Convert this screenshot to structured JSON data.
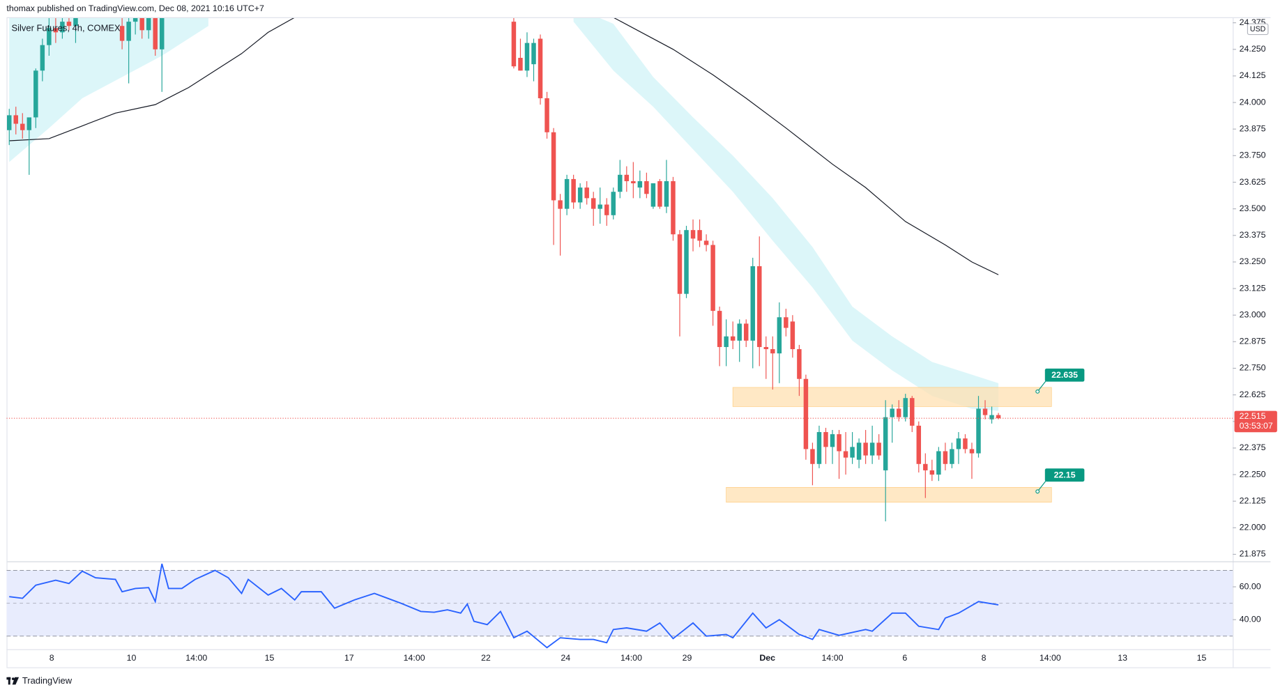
{
  "header": "thomax published on TradingView.com, Dec 08, 2021 10:16 UTC+7",
  "brand": "TradingView",
  "chart_data": [
    {
      "type": "candlestick",
      "title": "Silver Futures, 4h, COMEX",
      "y_unit": "USD",
      "up_color": "#26a69a",
      "down_color": "#ef5350",
      "grid": false,
      "xlim": [
        -0.4,
        184.3
      ],
      "xticks": [
        {
          "value": 6.4,
          "label": "8"
        },
        {
          "value": 18.4,
          "label": "10"
        },
        {
          "value": 28.2,
          "label": "14:00"
        },
        {
          "value": 39.2,
          "label": "15"
        },
        {
          "value": 51.2,
          "label": "17"
        },
        {
          "value": 61,
          "label": "14:00"
        },
        {
          "value": 71.8,
          "label": "22"
        },
        {
          "value": 83.8,
          "label": "24"
        },
        {
          "value": 93.7,
          "label": "14:00"
        },
        {
          "value": 102.1,
          "label": "29"
        },
        {
          "value": 114.2,
          "label": "Dec"
        },
        {
          "value": 124,
          "label": "14:00"
        },
        {
          "value": 134.9,
          "label": "6"
        },
        {
          "value": 146.8,
          "label": "8"
        },
        {
          "value": 156.8,
          "label": "14:00"
        },
        {
          "value": 167.7,
          "label": "13"
        },
        {
          "value": 179.6,
          "label": "15"
        }
      ],
      "ylim": [
        21.846,
        24.397
      ],
      "yticks": [
        {
          "value": 21.875,
          "label": "21.875"
        },
        {
          "value": 22,
          "label": "22.000"
        },
        {
          "value": 22.125,
          "label": "22.125"
        },
        {
          "value": 22.25,
          "label": "22.250"
        },
        {
          "value": 22.375,
          "label": "22.375"
        },
        {
          "value": 22.5,
          "label": "22.500"
        },
        {
          "value": 22.625,
          "label": "22.625"
        },
        {
          "value": 22.75,
          "label": "22.750"
        },
        {
          "value": 22.875,
          "label": "22.875"
        },
        {
          "value": 23,
          "label": "23.000"
        },
        {
          "value": 23.125,
          "label": "23.125"
        },
        {
          "value": 23.25,
          "label": "23.250"
        },
        {
          "value": 23.375,
          "label": "23.375"
        },
        {
          "value": 23.5,
          "label": "23.500"
        },
        {
          "value": 23.625,
          "label": "23.625"
        },
        {
          "value": 23.75,
          "label": "23.750"
        },
        {
          "value": 23.875,
          "label": "23.875"
        },
        {
          "value": 24,
          "label": "24.000"
        },
        {
          "value": 24.125,
          "label": "24.125"
        },
        {
          "value": 24.25,
          "label": "24.250"
        },
        {
          "value": 24.375,
          "label": "24.375"
        }
      ],
      "x": [
        0,
        1,
        2,
        3,
        4,
        5,
        6,
        7,
        8,
        9,
        10,
        17,
        18,
        19,
        20,
        21,
        22,
        23,
        76,
        77,
        78,
        79,
        80,
        81,
        82,
        83,
        84,
        85,
        86,
        87,
        88,
        89,
        90,
        91,
        92,
        93,
        94,
        95,
        96,
        97,
        98,
        99,
        100,
        101,
        102,
        103,
        104,
        105,
        106,
        107,
        108,
        109,
        110,
        111,
        112,
        113,
        114,
        115,
        116,
        117,
        118,
        119,
        120,
        121,
        122,
        123,
        124,
        125,
        126,
        127,
        128,
        129,
        130,
        131,
        132,
        133,
        134,
        135,
        136,
        137,
        138,
        139,
        140,
        141,
        142,
        143,
        144,
        145,
        146,
        147,
        148,
        149
      ],
      "candles": [
        [
          23.87,
          23.97,
          23.8,
          23.94
        ],
        [
          23.94,
          23.98,
          23.85,
          23.9
        ],
        [
          23.9,
          23.95,
          23.83,
          23.87
        ],
        [
          23.87,
          23.92,
          23.66,
          23.93
        ],
        [
          23.93,
          24.16,
          23.88,
          24.15
        ],
        [
          24.15,
          24.3,
          24.1,
          24.27
        ],
        [
          24.27,
          24.4,
          24.22,
          24.35
        ],
        [
          24.35,
          24.4,
          24.28,
          24.33
        ],
        [
          24.33,
          24.4,
          24.3,
          24.38
        ],
        [
          24.38,
          24.4,
          24.34,
          24.36
        ],
        [
          24.36,
          24.4,
          24.28,
          24.4
        ],
        [
          24.36,
          24.4,
          24.25,
          24.29
        ],
        [
          24.29,
          24.4,
          24.09,
          24.38
        ],
        [
          24.38,
          24.42,
          24.32,
          24.41
        ],
        [
          24.41,
          24.42,
          24.3,
          24.34
        ],
        [
          24.34,
          24.42,
          24.3,
          24.4
        ],
        [
          24.4,
          24.42,
          24.22,
          24.25
        ],
        [
          24.25,
          24.42,
          24.05,
          24.4
        ],
        [
          24.38,
          24.4,
          24.16,
          24.17
        ],
        [
          24.21,
          24.3,
          24.15,
          24.15
        ],
        [
          24.15,
          24.33,
          24.12,
          24.28
        ],
        [
          24.18,
          24.3,
          24.1,
          24.28
        ],
        [
          24.3,
          24.32,
          23.99,
          24.02
        ],
        [
          24.02,
          24.05,
          23.83,
          23.86
        ],
        [
          23.86,
          23.88,
          23.33,
          23.54
        ],
        [
          23.54,
          23.57,
          23.28,
          23.5
        ],
        [
          23.5,
          23.66,
          23.47,
          23.64
        ],
        [
          23.64,
          23.66,
          23.5,
          23.53
        ],
        [
          23.53,
          23.62,
          23.5,
          23.6
        ],
        [
          23.6,
          23.63,
          23.52,
          23.55
        ],
        [
          23.55,
          23.58,
          23.42,
          23.5
        ],
        [
          23.5,
          23.6,
          23.43,
          23.52
        ],
        [
          23.52,
          23.55,
          23.42,
          23.47
        ],
        [
          23.47,
          23.6,
          23.45,
          23.58
        ],
        [
          23.58,
          23.73,
          23.55,
          23.66
        ],
        [
          23.66,
          23.7,
          23.58,
          23.63
        ],
        [
          23.63,
          23.72,
          23.55,
          23.62
        ],
        [
          23.6,
          23.68,
          23.55,
          23.63
        ],
        [
          23.63,
          23.67,
          23.55,
          23.57
        ],
        [
          23.51,
          23.62,
          23.5,
          23.62
        ],
        [
          23.63,
          23.64,
          23.5,
          23.51
        ],
        [
          23.51,
          23.73,
          23.48,
          23.63
        ],
        [
          23.63,
          23.65,
          23.35,
          23.38
        ],
        [
          23.38,
          23.4,
          22.9,
          23.1
        ],
        [
          23.1,
          23.42,
          23.08,
          23.4
        ],
        [
          23.4,
          23.45,
          23.3,
          23.36
        ],
        [
          23.4,
          23.45,
          23.32,
          23.35
        ],
        [
          23.35,
          23.38,
          23.3,
          23.33
        ],
        [
          23.33,
          23.35,
          22.95,
          23.02
        ],
        [
          23.02,
          23.04,
          22.76,
          22.85
        ],
        [
          22.85,
          22.98,
          22.76,
          22.9
        ],
        [
          22.9,
          22.97,
          22.84,
          22.88
        ],
        [
          22.88,
          22.98,
          22.78,
          22.96
        ],
        [
          22.96,
          22.98,
          22.85,
          22.88
        ],
        [
          22.88,
          23.27,
          22.75,
          23.23
        ],
        [
          23.23,
          23.37,
          22.76,
          22.85
        ],
        [
          22.85,
          22.9,
          22.7,
          22.84
        ],
        [
          22.84,
          22.9,
          22.65,
          22.82
        ],
        [
          22.82,
          23.06,
          22.68,
          22.99
        ],
        [
          22.99,
          23.03,
          22.9,
          22.94
        ],
        [
          22.97,
          23,
          22.8,
          22.84
        ],
        [
          22.84,
          22.86,
          22.62,
          22.7
        ],
        [
          22.7,
          22.72,
          22.32,
          22.37
        ],
        [
          22.37,
          22.4,
          22.2,
          22.3
        ],
        [
          22.3,
          22.48,
          22.28,
          22.45
        ],
        [
          22.45,
          22.47,
          22.3,
          22.38
        ],
        [
          22.38,
          22.46,
          22.3,
          22.44
        ],
        [
          22.44,
          22.46,
          22.23,
          22.36
        ],
        [
          22.36,
          22.45,
          22.25,
          22.33
        ],
        [
          22.33,
          22.45,
          22.3,
          22.38
        ],
        [
          22.32,
          22.42,
          22.28,
          22.4
        ],
        [
          22.4,
          22.46,
          22.3,
          22.34
        ],
        [
          22.34,
          22.48,
          22.3,
          22.4
        ],
        [
          22.4,
          22.44,
          22.32,
          22.34
        ],
        [
          22.27,
          22.6,
          22.03,
          22.52
        ],
        [
          22.52,
          22.58,
          22.4,
          22.56
        ],
        [
          22.56,
          22.6,
          22.5,
          22.52
        ],
        [
          22.52,
          22.63,
          22.5,
          22.61
        ],
        [
          22.61,
          22.62,
          22.45,
          22.48
        ],
        [
          22.48,
          22.5,
          22.26,
          22.3
        ],
        [
          22.3,
          22.35,
          22.14,
          22.27
        ],
        [
          22.27,
          22.32,
          22.22,
          22.25
        ],
        [
          22.25,
          22.38,
          22.22,
          22.36
        ],
        [
          22.36,
          22.4,
          22.27,
          22.3
        ],
        [
          22.3,
          22.4,
          22.28,
          22.37
        ],
        [
          22.37,
          22.45,
          22.3,
          22.42
        ],
        [
          22.42,
          22.44,
          22.35,
          22.37
        ],
        [
          22.37,
          22.4,
          22.23,
          22.35
        ],
        [
          22.35,
          22.62,
          22.33,
          22.56
        ],
        [
          22.56,
          22.6,
          22.51,
          22.53
        ],
        [
          22.51,
          22.57,
          22.49,
          22.53
        ],
        [
          22.53,
          22.54,
          22.51,
          22.515
        ]
      ],
      "ma": {
        "type": "line",
        "color": "#131722",
        "x": [
          0,
          6,
          11,
          16,
          22,
          27,
          35,
          39,
          43,
          null,
          91,
          100,
          106,
          111,
          117,
          124,
          129,
          135,
          141,
          145,
          149
        ],
        "values": [
          23.82,
          23.83,
          23.89,
          23.95,
          23.99,
          24.07,
          24.23,
          24.33,
          24.4,
          null,
          24.4,
          24.25,
          24.13,
          24.02,
          23.88,
          23.71,
          23.6,
          23.44,
          23.33,
          23.25,
          23.19
        ]
      },
      "band": {
        "type": "area",
        "color": "#b2ebf2",
        "x": [
          0,
          6,
          11,
          17,
          23,
          30,
          null,
          85,
          91,
          97,
          103,
          109,
          115,
          121,
          127,
          133,
          139,
          145,
          149
        ],
        "upper": [
          24.45,
          24.45,
          24.45,
          24.45,
          24.45,
          24.45,
          null,
          24.45,
          24.37,
          24.12,
          23.93,
          23.75,
          23.55,
          23.32,
          23.04,
          22.9,
          22.78,
          22.72,
          22.68
        ],
        "lower": [
          23.72,
          23.88,
          24.02,
          24.12,
          24.22,
          24.36,
          null,
          24.38,
          24.15,
          23.98,
          23.78,
          23.58,
          23.35,
          23.13,
          22.88,
          22.74,
          22.62,
          22.56,
          22.55
        ]
      },
      "zones": [
        {
          "x": [
            109,
            157
          ],
          "y": [
            22.57,
            22.66
          ],
          "label": 22.635
        },
        {
          "x": [
            108,
            157
          ],
          "y": [
            22.12,
            22.19
          ],
          "label": 22.15
        }
      ],
      "zone_color": "#ffe0b2",
      "callout_color": "#089981",
      "last_price": {
        "value": 22.515,
        "countdown": "03:53:07",
        "color": "#ef5350"
      }
    },
    {
      "type": "line",
      "color": "#2962ff",
      "xlim": [
        -0.4,
        184.3
      ],
      "ylim": [
        22,
        74.5
      ],
      "yticks": [
        {
          "value": 40,
          "label": "40.00"
        },
        {
          "value": 60,
          "label": "60.00"
        }
      ],
      "levels": [
        70,
        50,
        30
      ],
      "fill_color": "#e8ecfd",
      "x": [
        0,
        2,
        4,
        7,
        9,
        11,
        13,
        16,
        17,
        19,
        21,
        22,
        23,
        24,
        26,
        28,
        31,
        33,
        35,
        36,
        39,
        41,
        43,
        44,
        47,
        49,
        52,
        55,
        57,
        59,
        62,
        64,
        66,
        68,
        69,
        70,
        72,
        74,
        76,
        78,
        81,
        83,
        86,
        88,
        90,
        91,
        93,
        96,
        98,
        100,
        103,
        105,
        108,
        109,
        112,
        114,
        116,
        119,
        121,
        122,
        125,
        129,
        130,
        133,
        135,
        137,
        140,
        141,
        143,
        146,
        149
      ],
      "values": [
        54,
        53,
        61,
        64,
        62,
        69.5,
        65.5,
        64.5,
        57,
        59,
        59.5,
        51,
        74,
        59,
        59,
        64.5,
        70,
        65.5,
        56,
        64.5,
        55,
        59,
        52,
        57,
        57,
        47,
        52,
        56,
        53,
        50,
        45,
        44.5,
        46,
        44,
        49.5,
        39,
        37,
        45,
        29,
        33,
        23,
        29,
        28,
        28,
        26,
        34,
        35,
        33,
        38,
        28.5,
        38,
        30,
        31,
        29,
        44,
        35,
        40,
        31,
        28,
        34,
        30.5,
        34,
        33,
        44,
        44,
        36,
        34,
        41,
        44,
        51,
        49
      ]
    }
  ]
}
